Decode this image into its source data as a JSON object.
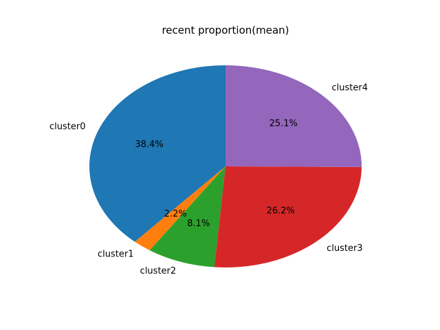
{
  "chart_data": {
    "type": "pie",
    "title": "recent proportion(mean)",
    "categories": [
      "cluster0",
      "cluster1",
      "cluster2",
      "cluster3",
      "cluster4"
    ],
    "values": [
      38.4,
      2.2,
      8.1,
      26.2,
      25.1
    ],
    "percent_labels": [
      "38.4%",
      "2.2%",
      "8.1%",
      "26.2%",
      "25.1%"
    ],
    "colors": [
      "#1f77b4",
      "#ff7f0e",
      "#2ca02c",
      "#d62728",
      "#9467bd"
    ],
    "start_angle_deg": 90,
    "direction": "counterclockwise"
  }
}
